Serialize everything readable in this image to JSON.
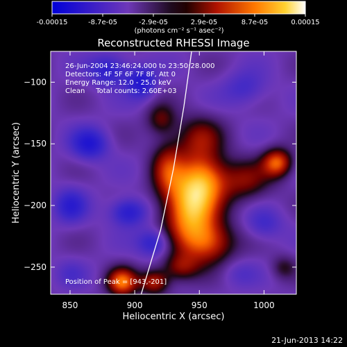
{
  "chart_data": {
    "type": "heatmap",
    "title": "Reconstructed RHESSI Image",
    "xlabel": "Heliocentric X (arcsec)",
    "ylabel": "Heliocentric Y (arcsec)",
    "xlim": [
      835,
      1025
    ],
    "ylim": [
      -272,
      -75
    ],
    "xticks": [
      850,
      900,
      950,
      1000
    ],
    "yticks": [
      -100,
      -150,
      -200,
      -250
    ],
    "colorbar": {
      "min": -0.00015,
      "max": 0.00015,
      "tick_labels": [
        "-0.00015",
        "-8.7e-05",
        "-2.9e-05",
        "2.9e-05",
        "8.7e-05",
        "0.00015"
      ],
      "unit_label": "(photons cm⁻² s⁻¹ asec⁻²)"
    },
    "info_lines": [
      "26-Jun-2004 23:46:24.000 to 23:50:28.000",
      "Detectors: 4F 5F 6F 7F 8F, Att 0",
      "Energy Range: 12.0 - 25.0 keV",
      "Clean     Total counts: 2.60E+03"
    ],
    "peak_label": "Position of Peak = [943,-201]",
    "peak": [
      943,
      -201
    ],
    "limb_points": [
      [
        944,
        -75
      ],
      [
        938,
        -120
      ],
      [
        930,
        -170
      ],
      [
        920,
        -220
      ],
      [
        905,
        -272
      ]
    ],
    "sources": [
      {
        "x": 943,
        "y": -201,
        "amp": 1.0,
        "sx": 14,
        "sy": 22
      },
      {
        "x": 955,
        "y": -178,
        "amp": 0.55,
        "sx": 12,
        "sy": 14
      },
      {
        "x": 950,
        "y": -145,
        "amp": 0.4,
        "sx": 13,
        "sy": 13
      },
      {
        "x": 1010,
        "y": -165,
        "amp": 0.7,
        "sx": 8,
        "sy": 8
      },
      {
        "x": 985,
        "y": -180,
        "amp": 0.4,
        "sx": 14,
        "sy": 12
      },
      {
        "x": 925,
        "y": -170,
        "amp": 0.45,
        "sx": 9,
        "sy": 16
      },
      {
        "x": 920,
        "y": -130,
        "amp": 0.35,
        "sx": 8,
        "sy": 9
      },
      {
        "x": 958,
        "y": -230,
        "amp": 0.55,
        "sx": 14,
        "sy": 12
      },
      {
        "x": 935,
        "y": -250,
        "amp": 0.4,
        "sx": 10,
        "sy": 8
      },
      {
        "x": 890,
        "y": -262,
        "amp": 0.75,
        "sx": 8,
        "sy": 8
      },
      {
        "x": 915,
        "y": -262,
        "amp": 0.55,
        "sx": 8,
        "sy": 7
      },
      {
        "x": 1015,
        "y": -250,
        "amp": 0.25,
        "sx": 7,
        "sy": 7
      },
      {
        "x": 865,
        "y": -150,
        "amp": -0.45,
        "sx": 10,
        "sy": 9
      },
      {
        "x": 880,
        "y": -90,
        "amp": -0.4,
        "sx": 11,
        "sy": 9
      },
      {
        "x": 905,
        "y": -100,
        "amp": -0.45,
        "sx": 8,
        "sy": 9
      },
      {
        "x": 895,
        "y": -205,
        "amp": -0.45,
        "sx": 10,
        "sy": 8
      },
      {
        "x": 850,
        "y": -200,
        "amp": -0.35,
        "sx": 9,
        "sy": 10
      },
      {
        "x": 915,
        "y": -230,
        "amp": -0.4,
        "sx": 9,
        "sy": 8
      },
      {
        "x": 985,
        "y": -105,
        "amp": -0.25,
        "sx": 12,
        "sy": 10
      },
      {
        "x": 1000,
        "y": -215,
        "amp": -0.25,
        "sx": 10,
        "sy": 9
      },
      {
        "x": 850,
        "y": -255,
        "amp": -0.15,
        "sx": 9,
        "sy": 8
      },
      {
        "x": 980,
        "y": -255,
        "amp": -0.15,
        "sx": 10,
        "sy": 8
      }
    ]
  },
  "footer": {
    "timestamp": "21-Jun-2013 14:22"
  }
}
